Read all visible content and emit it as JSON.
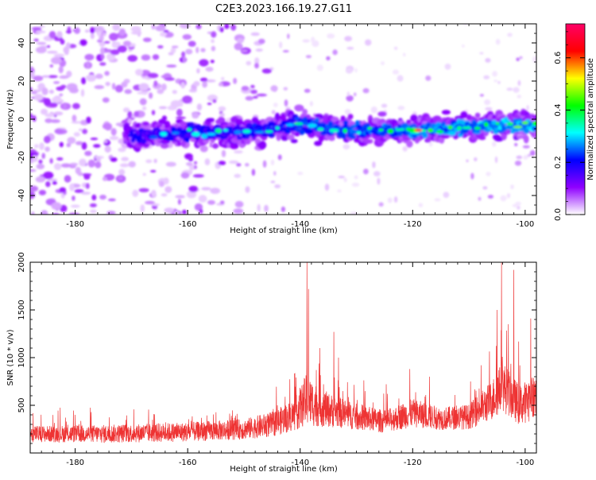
{
  "title": "C2E3.2023.166.19.27.G11",
  "chart_data": [
    {
      "type": "heatmap",
      "xlabel": "Height of straight line (km)",
      "ylabel": "Frequency (Hz)",
      "xlim": [
        -188,
        -98
      ],
      "ylim": [
        -50,
        50
      ],
      "x_ticks": [
        -180,
        -160,
        -140,
        -120,
        -100
      ],
      "x_tick_labels": [
        "-180",
        "-160",
        "-140",
        "-120",
        "-100"
      ],
      "y_ticks": [
        40,
        20,
        0,
        -20,
        -40
      ],
      "y_tick_labels": [
        "40",
        "20",
        "0",
        "-20",
        "-40"
      ],
      "colorbar": {
        "label": "Normalized spectral amplitude",
        "range": [
          0,
          0.73
        ],
        "ticks": [
          0.0,
          0.2,
          0.4,
          0.6
        ],
        "tick_labels": [
          "0.0",
          "0.2",
          "0.4",
          "0.6"
        ],
        "colors": [
          "#ffffff",
          "#8f00ff",
          "#0000ff",
          "#00ffff",
          "#00ff00",
          "#ffff00",
          "#ff0000",
          "#ff0066"
        ]
      },
      "band": {
        "start_height_km": -171,
        "end_height_km": -98,
        "center_hz": [
          {
            "x": -171,
            "y": -9
          },
          {
            "x": -160,
            "y": -7
          },
          {
            "x": -150,
            "y": -7
          },
          {
            "x": -140,
            "y": -3
          },
          {
            "x": -130,
            "y": -6
          },
          {
            "x": -120,
            "y": -6
          },
          {
            "x": -110,
            "y": -4
          },
          {
            "x": -100,
            "y": -3
          }
        ],
        "peak_amplitude": 0.72,
        "peak_at_height_km": -119
      },
      "noise": {
        "dense_from_km": -188,
        "dense_to_km": -145,
        "sparse_to_km": -98
      }
    },
    {
      "type": "line",
      "xlabel": "Height of straight line (km)",
      "ylabel": "SNR (10 * v/v)",
      "xlim": [
        -188,
        -98
      ],
      "ylim": [
        0,
        2000
      ],
      "x_ticks": [
        -180,
        -160,
        -140,
        -120,
        -100
      ],
      "x_tick_labels": [
        "-180",
        "-160",
        "-140",
        "-120",
        "-100"
      ],
      "y_ticks": [
        500,
        1000,
        1500,
        2000
      ],
      "y_tick_labels": [
        "500",
        "1000",
        "1500",
        "2000"
      ],
      "color": "#ee3333",
      "envelope": [
        {
          "x": -188,
          "base": 200,
          "spread": 140
        },
        {
          "x": -175,
          "base": 200,
          "spread": 160
        },
        {
          "x": -160,
          "base": 220,
          "spread": 170
        },
        {
          "x": -150,
          "base": 250,
          "spread": 180
        },
        {
          "x": -145,
          "base": 300,
          "spread": 220
        },
        {
          "x": -141,
          "base": 400,
          "spread": 280
        },
        {
          "x": -139,
          "base": 550,
          "spread": 450
        },
        {
          "x": -135,
          "base": 450,
          "spread": 300
        },
        {
          "x": -130,
          "base": 380,
          "spread": 230
        },
        {
          "x": -125,
          "base": 330,
          "spread": 200
        },
        {
          "x": -120,
          "base": 420,
          "spread": 250
        },
        {
          "x": -115,
          "base": 360,
          "spread": 200
        },
        {
          "x": -110,
          "base": 380,
          "spread": 220
        },
        {
          "x": -106,
          "base": 550,
          "spread": 350
        },
        {
          "x": -104,
          "base": 700,
          "spread": 450
        },
        {
          "x": -101,
          "base": 500,
          "spread": 350
        },
        {
          "x": -98,
          "base": 600,
          "spread": 400
        }
      ],
      "spikes": [
        {
          "x": -138.8,
          "y": 2000
        },
        {
          "x": -138.5,
          "y": 1720
        },
        {
          "x": -136.5,
          "y": 1100
        },
        {
          "x": -134.0,
          "y": 1270
        },
        {
          "x": -133.2,
          "y": 1000
        },
        {
          "x": -120.5,
          "y": 880
        },
        {
          "x": -117.0,
          "y": 800
        },
        {
          "x": -105.0,
          "y": 1500
        },
        {
          "x": -104.2,
          "y": 2000
        },
        {
          "x": -103.0,
          "y": 1350
        },
        {
          "x": -102.0,
          "y": 1920
        },
        {
          "x": -99.0,
          "y": 1410
        }
      ]
    }
  ]
}
